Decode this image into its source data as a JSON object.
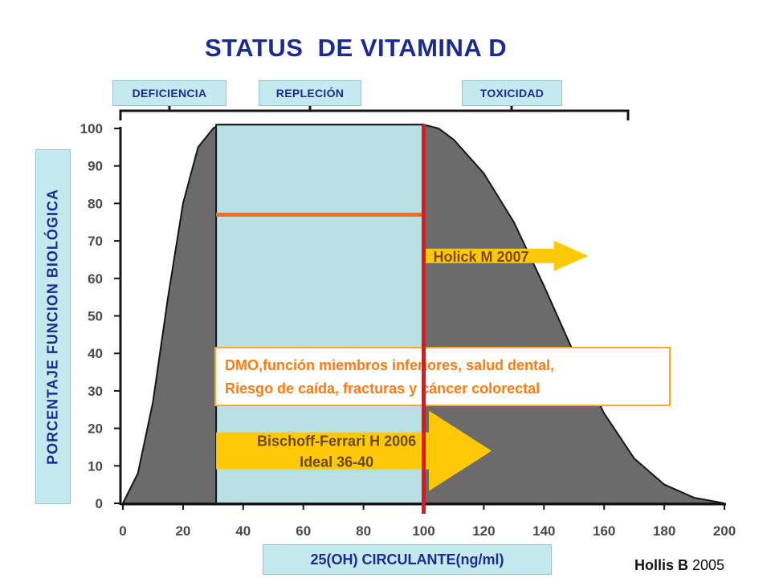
{
  "title": "STATUS  DE VITAMINA D",
  "zones": [
    {
      "id": "deficiencia",
      "label": "DEFICIENCIA"
    },
    {
      "id": "replecion",
      "label": "REPLECIÓN"
    },
    {
      "id": "toxicidad",
      "label": "TOXICIDAD"
    }
  ],
  "colors": {
    "title": "#1c2b8f",
    "label_box": "#c4eaf0",
    "curve_fill": "#6b6b6b",
    "replecion_fill": "#b8e0e4",
    "red_line": "#e8141b",
    "orange_line": "#ff6a0a",
    "arrow": "#ffc808",
    "callout_text": "#ff7a10"
  },
  "chart_data": {
    "type": "area",
    "xlabel": "25(OH) CIRCULANTE(ng/ml)",
    "ylabel": "PORCENTAJE FUNCION BIOLÓGICA",
    "xlim": [
      0,
      200
    ],
    "ylim": [
      0,
      100
    ],
    "x_ticks": [
      0,
      20,
      40,
      60,
      80,
      100,
      120,
      140,
      160,
      180,
      200
    ],
    "y_ticks": [
      0,
      10,
      20,
      30,
      40,
      50,
      60,
      70,
      80,
      90,
      100
    ],
    "grid": false,
    "series": [
      {
        "x": [
          0,
          5,
          10,
          15,
          20,
          25,
          30,
          32,
          100,
          105,
          110,
          120,
          130,
          140,
          150,
          160,
          170,
          180,
          190,
          200
        ],
        "y": [
          0,
          8,
          27,
          55,
          80,
          95,
          100,
          101,
          101,
          100,
          97,
          88,
          75,
          58,
          40,
          24,
          12,
          5,
          1.5,
          0
        ]
      }
    ],
    "replecion_range": [
      31,
      100
    ],
    "red_line_x": 100,
    "orange_line": {
      "x": [
        31,
        100
      ],
      "y": 77
    },
    "annotations": [
      {
        "id": "holick",
        "text": "Holick M 2007",
        "x_start": 100,
        "y": 66
      },
      {
        "id": "bischoff",
        "lines": [
          "Bischoff-Ferrari H 2006",
          "Ideal 36-40"
        ],
        "x_start": 31,
        "y": 14
      },
      {
        "id": "dmo",
        "lines": [
          "DMO,función miembros inferiores, salud dental,",
          "Riesgo de caída, fracturas y cáncer colorectal"
        ]
      }
    ]
  },
  "citation": {
    "author": "Hollis B",
    "year": " 2005"
  }
}
